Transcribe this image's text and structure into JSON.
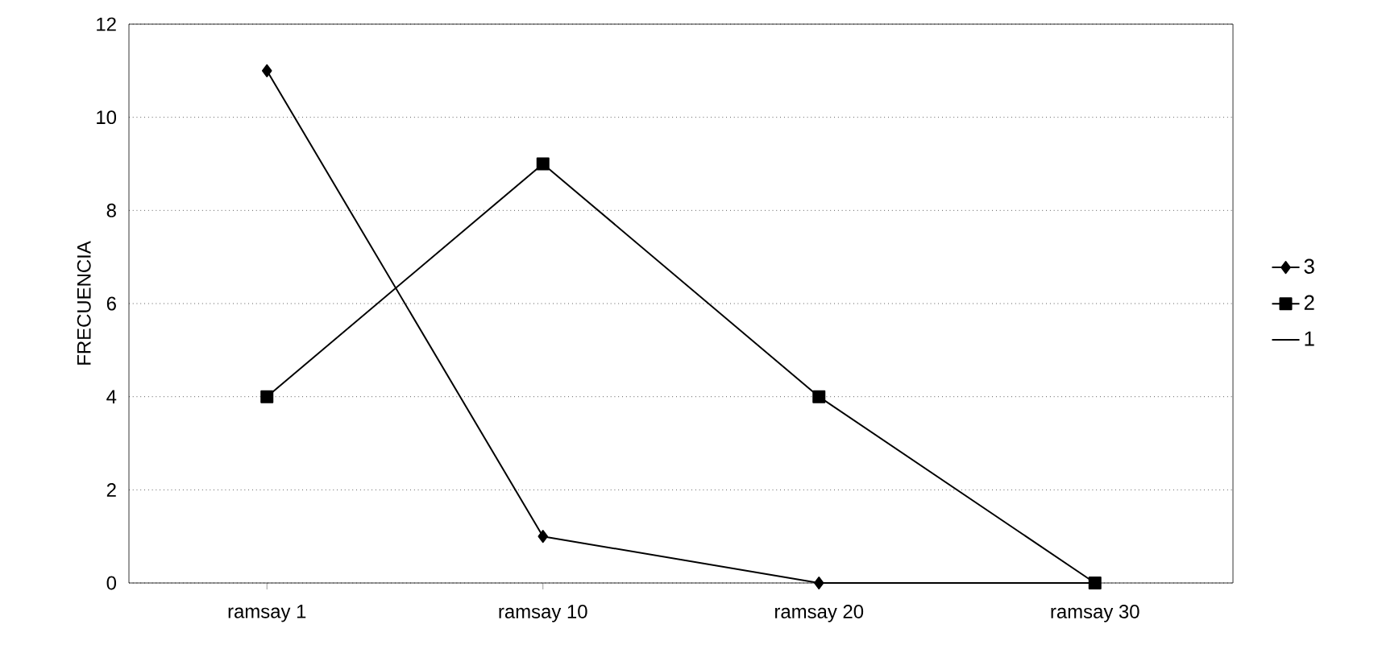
{
  "chart_data": {
    "type": "line",
    "ylabel": "FRECUENCIA",
    "categories": [
      "ramsay 1",
      "ramsay 10",
      "ramsay 20",
      "ramsay 30"
    ],
    "series": [
      {
        "name": "3",
        "color": "#000000",
        "marker": "diamond",
        "values": [
          11,
          1,
          0,
          0
        ]
      },
      {
        "name": "2",
        "color": "#000000",
        "marker": "square",
        "values": [
          4,
          9,
          4,
          0
        ]
      },
      {
        "name": "1",
        "marker": "none",
        "values": [
          null,
          null,
          null,
          null
        ]
      }
    ],
    "ylim": [
      0,
      12
    ],
    "yticks": [
      0,
      2,
      4,
      6,
      8,
      10,
      12
    ],
    "grid": "y",
    "legend": "right",
    "line_style": "solid"
  }
}
